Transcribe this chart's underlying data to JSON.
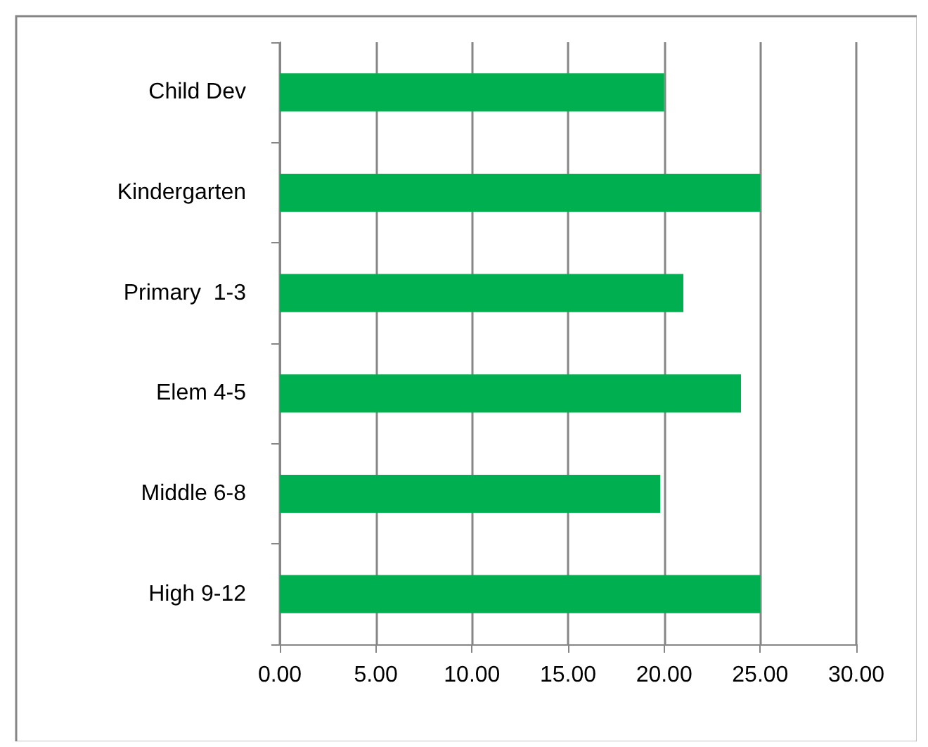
{
  "chart_data": {
    "type": "bar",
    "orientation": "horizontal",
    "categories": [
      "Child Dev",
      "Kindergarten",
      "Primary  1-3",
      "Elem 4-5",
      "Middle 6-8",
      "High 9-12"
    ],
    "values": [
      20,
      25,
      21,
      24,
      19.8,
      25
    ],
    "color": "#00b050",
    "xlim": [
      0,
      30
    ],
    "xticks": [
      {
        "value": 0,
        "label": "0.00"
      },
      {
        "value": 5,
        "label": "5.00"
      },
      {
        "value": 10,
        "label": "10.00"
      },
      {
        "value": 15,
        "label": "15.00"
      },
      {
        "value": 20,
        "label": "20.00"
      },
      {
        "value": 25,
        "label": "25.00"
      },
      {
        "value": 30,
        "label": "30.00"
      }
    ],
    "grid": "x"
  }
}
